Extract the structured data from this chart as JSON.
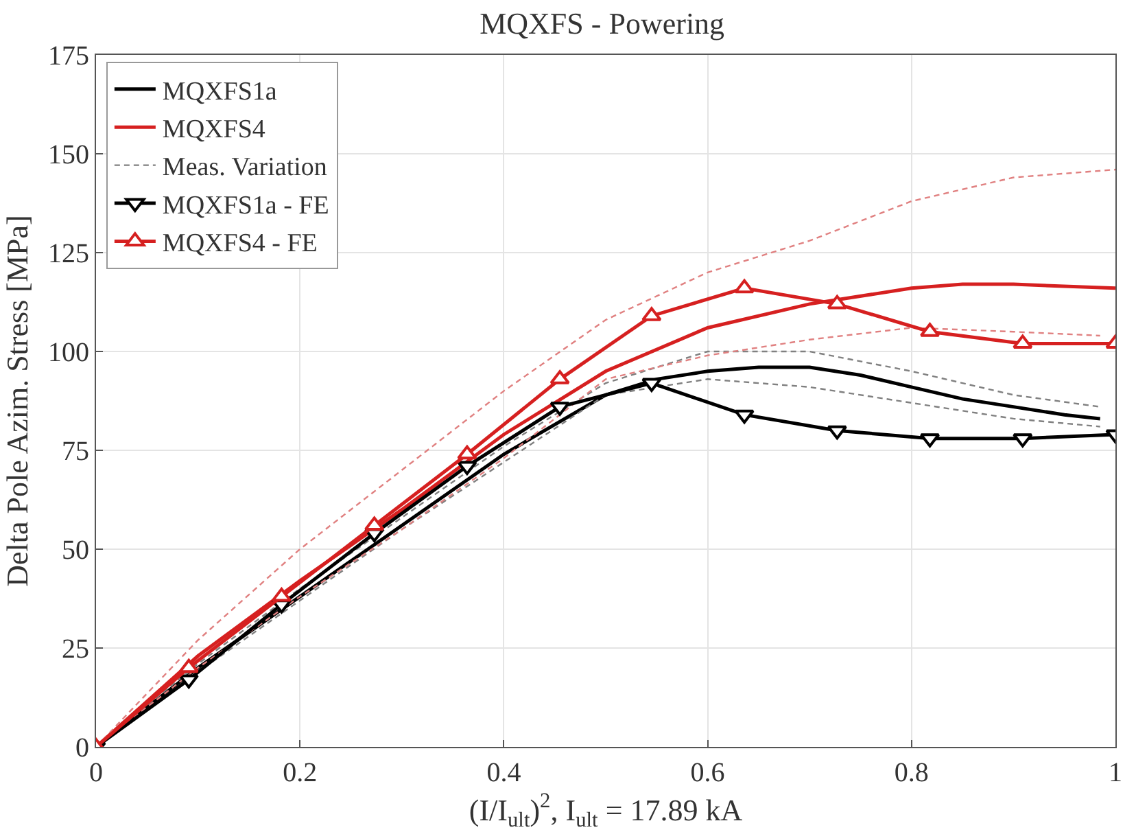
{
  "chart_data": {
    "type": "line",
    "title": "MQXFS - Powering",
    "xlabel": "(I/I$_{ult}$)$^{2}$, I$_{ult}$ = 17.89 kA",
    "ylabel": "Delta Pole Azim. Stress [MPa]",
    "xlim": [
      0,
      1
    ],
    "xticks": [
      0,
      0.2,
      0.4,
      0.6,
      0.8,
      1
    ],
    "ylim": [
      0,
      175
    ],
    "yticks": [
      0,
      25,
      50,
      75,
      100,
      125,
      150,
      175
    ],
    "grid": true,
    "legend": "top left",
    "series": [
      {
        "name": "MQXFS1a",
        "color": "#000000",
        "line_style": "solid",
        "marker": "none",
        "x": [
          0,
          0.1,
          0.2,
          0.3,
          0.4,
          0.5,
          0.55,
          0.6,
          0.65,
          0.7,
          0.75,
          0.8,
          0.85,
          0.9,
          0.95,
          0.985
        ],
        "values": [
          0,
          20,
          38,
          56,
          74,
          89,
          93,
          95,
          96,
          96,
          94,
          91,
          88,
          86,
          84,
          83
        ]
      },
      {
        "name": "MQXFS4",
        "color": "#d62020",
        "line_style": "solid",
        "marker": "none",
        "x": [
          0,
          0.1,
          0.2,
          0.3,
          0.4,
          0.5,
          0.6,
          0.7,
          0.8,
          0.85,
          0.9,
          1
        ],
        "values": [
          0,
          23,
          42,
          60,
          79,
          95,
          106,
          112,
          116,
          117,
          117,
          116
        ]
      },
      {
        "name": "Meas. Variation",
        "color": "#808080",
        "line_style": "dashed",
        "marker": "none",
        "x": [
          0,
          0.1,
          0.2,
          0.3,
          0.4,
          0.5,
          0.6,
          0.7,
          0.8,
          0.9,
          0.985
        ],
        "values": [
          0,
          21,
          40,
          58,
          76,
          92,
          100,
          100,
          95,
          89,
          86
        ]
      },
      {
        "color": "#808080",
        "line_style": "dashed",
        "marker": "none",
        "x": [
          0,
          0.1,
          0.2,
          0.3,
          0.4,
          0.5,
          0.6,
          0.7,
          0.8,
          0.9,
          0.985
        ],
        "values": [
          0,
          19,
          37,
          55,
          72,
          89,
          93,
          91,
          87,
          83,
          81
        ]
      },
      {
        "color": "#e08080",
        "line_style": "dashed",
        "marker": "none",
        "x": [
          0,
          0.1,
          0.2,
          0.3,
          0.4,
          0.5,
          0.6,
          0.7,
          0.8,
          0.9,
          1
        ],
        "values": [
          0,
          27,
          50,
          70,
          90,
          108,
          120,
          128,
          138,
          144,
          146
        ]
      },
      {
        "color": "#e08080",
        "line_style": "dashed",
        "marker": "none",
        "x": [
          0,
          0.1,
          0.2,
          0.3,
          0.4,
          0.5,
          0.6,
          0.7,
          0.8,
          0.9,
          0.985
        ],
        "values": [
          0,
          20,
          38,
          55,
          73,
          93,
          99,
          103,
          106,
          105,
          104
        ]
      },
      {
        "name": "MQXFS1a - FE",
        "color": "#000000",
        "line_style": "solid",
        "marker": "triangle-down",
        "x": [
          0,
          0.091,
          0.182,
          0.273,
          0.364,
          0.455,
          0.545,
          0.636,
          0.727,
          0.818,
          0.909,
          1
        ],
        "values": [
          0,
          17,
          36,
          54,
          71,
          86,
          92,
          84,
          80,
          78,
          78,
          79
        ]
      },
      {
        "name": "MQXFS4 - FE",
        "color": "#d62020",
        "line_style": "solid",
        "marker": "triangle",
        "x": [
          0,
          0.091,
          0.182,
          0.273,
          0.364,
          0.455,
          0.545,
          0.636,
          0.727,
          0.818,
          0.909,
          1
        ],
        "values": [
          0,
          20,
          38,
          56,
          74,
          93,
          109,
          116,
          112,
          105,
          102,
          102
        ]
      }
    ]
  }
}
